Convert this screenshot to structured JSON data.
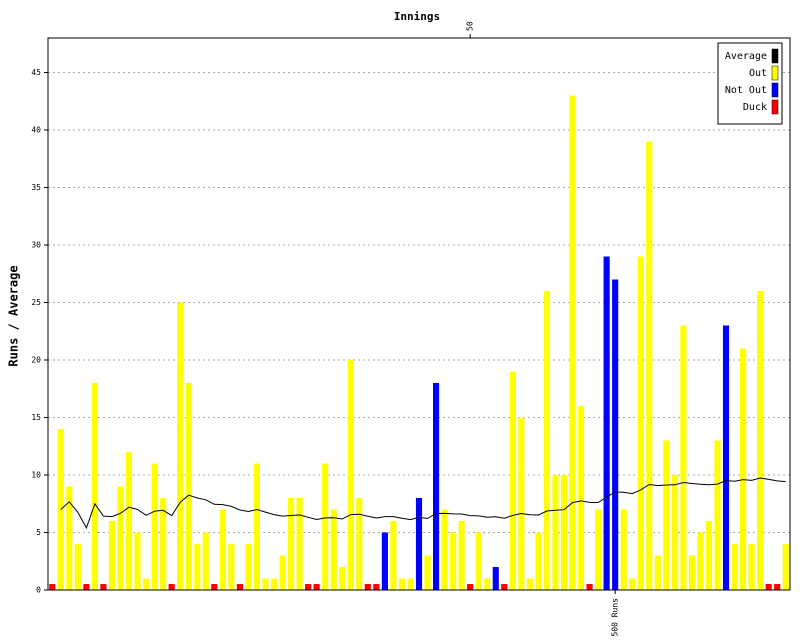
{
  "chart_data": {
    "type": "bar-line",
    "title": "Innings",
    "y_label": "Runs / Average",
    "ylim": [
      0,
      48
    ],
    "yticks": [
      0,
      5,
      10,
      15,
      20,
      25,
      30,
      35,
      40,
      45
    ],
    "grid": true,
    "legend": "top-right",
    "top_ticks": [
      50
    ],
    "bottom_ticks": [
      {
        "value": 67,
        "label": "500 Runs"
      }
    ],
    "series": [
      {
        "name": "Average",
        "color": "#000000",
        "kind": "line",
        "values": [
          null,
          7,
          7.67,
          6.75,
          5.4,
          7.5,
          6.43,
          6.38,
          6.67,
          7.2,
          7.0,
          6.5,
          6.85,
          6.93,
          6.47,
          7.63,
          8.24,
          8.0,
          7.84,
          7.45,
          7.43,
          7.27,
          6.96,
          6.83,
          7.0,
          6.77,
          6.56,
          6.43,
          6.48,
          6.53,
          6.32,
          6.13,
          6.27,
          6.29,
          6.17,
          6.56,
          6.59,
          6.42,
          6.26,
          6.38,
          6.38,
          6.24,
          6.12,
          6.31,
          6.23,
          6.65,
          6.66,
          6.62,
          6.61,
          6.47,
          6.44,
          6.33,
          6.37,
          6.24,
          6.49,
          6.65,
          6.55,
          6.52,
          6.87,
          6.93,
          6.98,
          7.6,
          7.75,
          7.62,
          7.61,
          8.08,
          8.52,
          8.5,
          8.38,
          8.7,
          9.17,
          9.08,
          9.13,
          9.15,
          9.35,
          9.26,
          9.2,
          9.15,
          9.21,
          9.52,
          9.45,
          9.6,
          9.53,
          9.74,
          9.62,
          9.49,
          9.43
        ]
      },
      {
        "name": "Out",
        "color": "#ffff00",
        "kind": "bar",
        "values": [
          null,
          14,
          9,
          4,
          null,
          18,
          null,
          6,
          9,
          12,
          5,
          1,
          11,
          8,
          null,
          25,
          18,
          4,
          5,
          null,
          7,
          4,
          null,
          4,
          11,
          1,
          1,
          3,
          8,
          8,
          null,
          null,
          11,
          7,
          2,
          20,
          8,
          null,
          null,
          null,
          6,
          1,
          1,
          null,
          3,
          null,
          7,
          5,
          6,
          null,
          5,
          1,
          null,
          null,
          19,
          15,
          1,
          5,
          26,
          10,
          10,
          43,
          16,
          null,
          7,
          null,
          null,
          7,
          1,
          29,
          39,
          3,
          13,
          10,
          23,
          3,
          5,
          6,
          13,
          null,
          4,
          21,
          4,
          26,
          null,
          null,
          4
        ]
      },
      {
        "name": "Not Out",
        "color": "#0000ff",
        "kind": "bar",
        "values": [
          null,
          null,
          null,
          null,
          null,
          null,
          null,
          null,
          null,
          null,
          null,
          null,
          null,
          null,
          null,
          null,
          null,
          null,
          null,
          null,
          null,
          null,
          null,
          null,
          null,
          null,
          null,
          null,
          null,
          null,
          null,
          null,
          null,
          null,
          null,
          null,
          null,
          null,
          null,
          5,
          null,
          null,
          null,
          8,
          null,
          18,
          null,
          null,
          null,
          null,
          null,
          null,
          2,
          null,
          null,
          null,
          null,
          null,
          null,
          null,
          null,
          null,
          null,
          null,
          null,
          29,
          27,
          null,
          null,
          null,
          null,
          null,
          null,
          null,
          null,
          null,
          null,
          null,
          null,
          23,
          null,
          null,
          null,
          null,
          null,
          null,
          null
        ]
      },
      {
        "name": "Duck",
        "color": "#ff0000",
        "kind": "duck",
        "values": [
          0,
          null,
          null,
          null,
          0,
          null,
          0,
          null,
          null,
          null,
          null,
          null,
          null,
          null,
          0,
          null,
          null,
          null,
          null,
          0,
          null,
          null,
          0,
          null,
          null,
          null,
          null,
          null,
          null,
          null,
          0,
          0,
          null,
          null,
          null,
          null,
          null,
          0,
          0,
          null,
          null,
          null,
          null,
          null,
          null,
          null,
          null,
          null,
          null,
          0,
          null,
          null,
          null,
          0,
          null,
          null,
          null,
          null,
          null,
          null,
          null,
          null,
          null,
          0,
          null,
          null,
          null,
          null,
          null,
          null,
          null,
          null,
          null,
          null,
          null,
          null,
          null,
          null,
          null,
          null,
          null,
          null,
          null,
          null,
          0,
          0,
          null
        ]
      }
    ]
  }
}
